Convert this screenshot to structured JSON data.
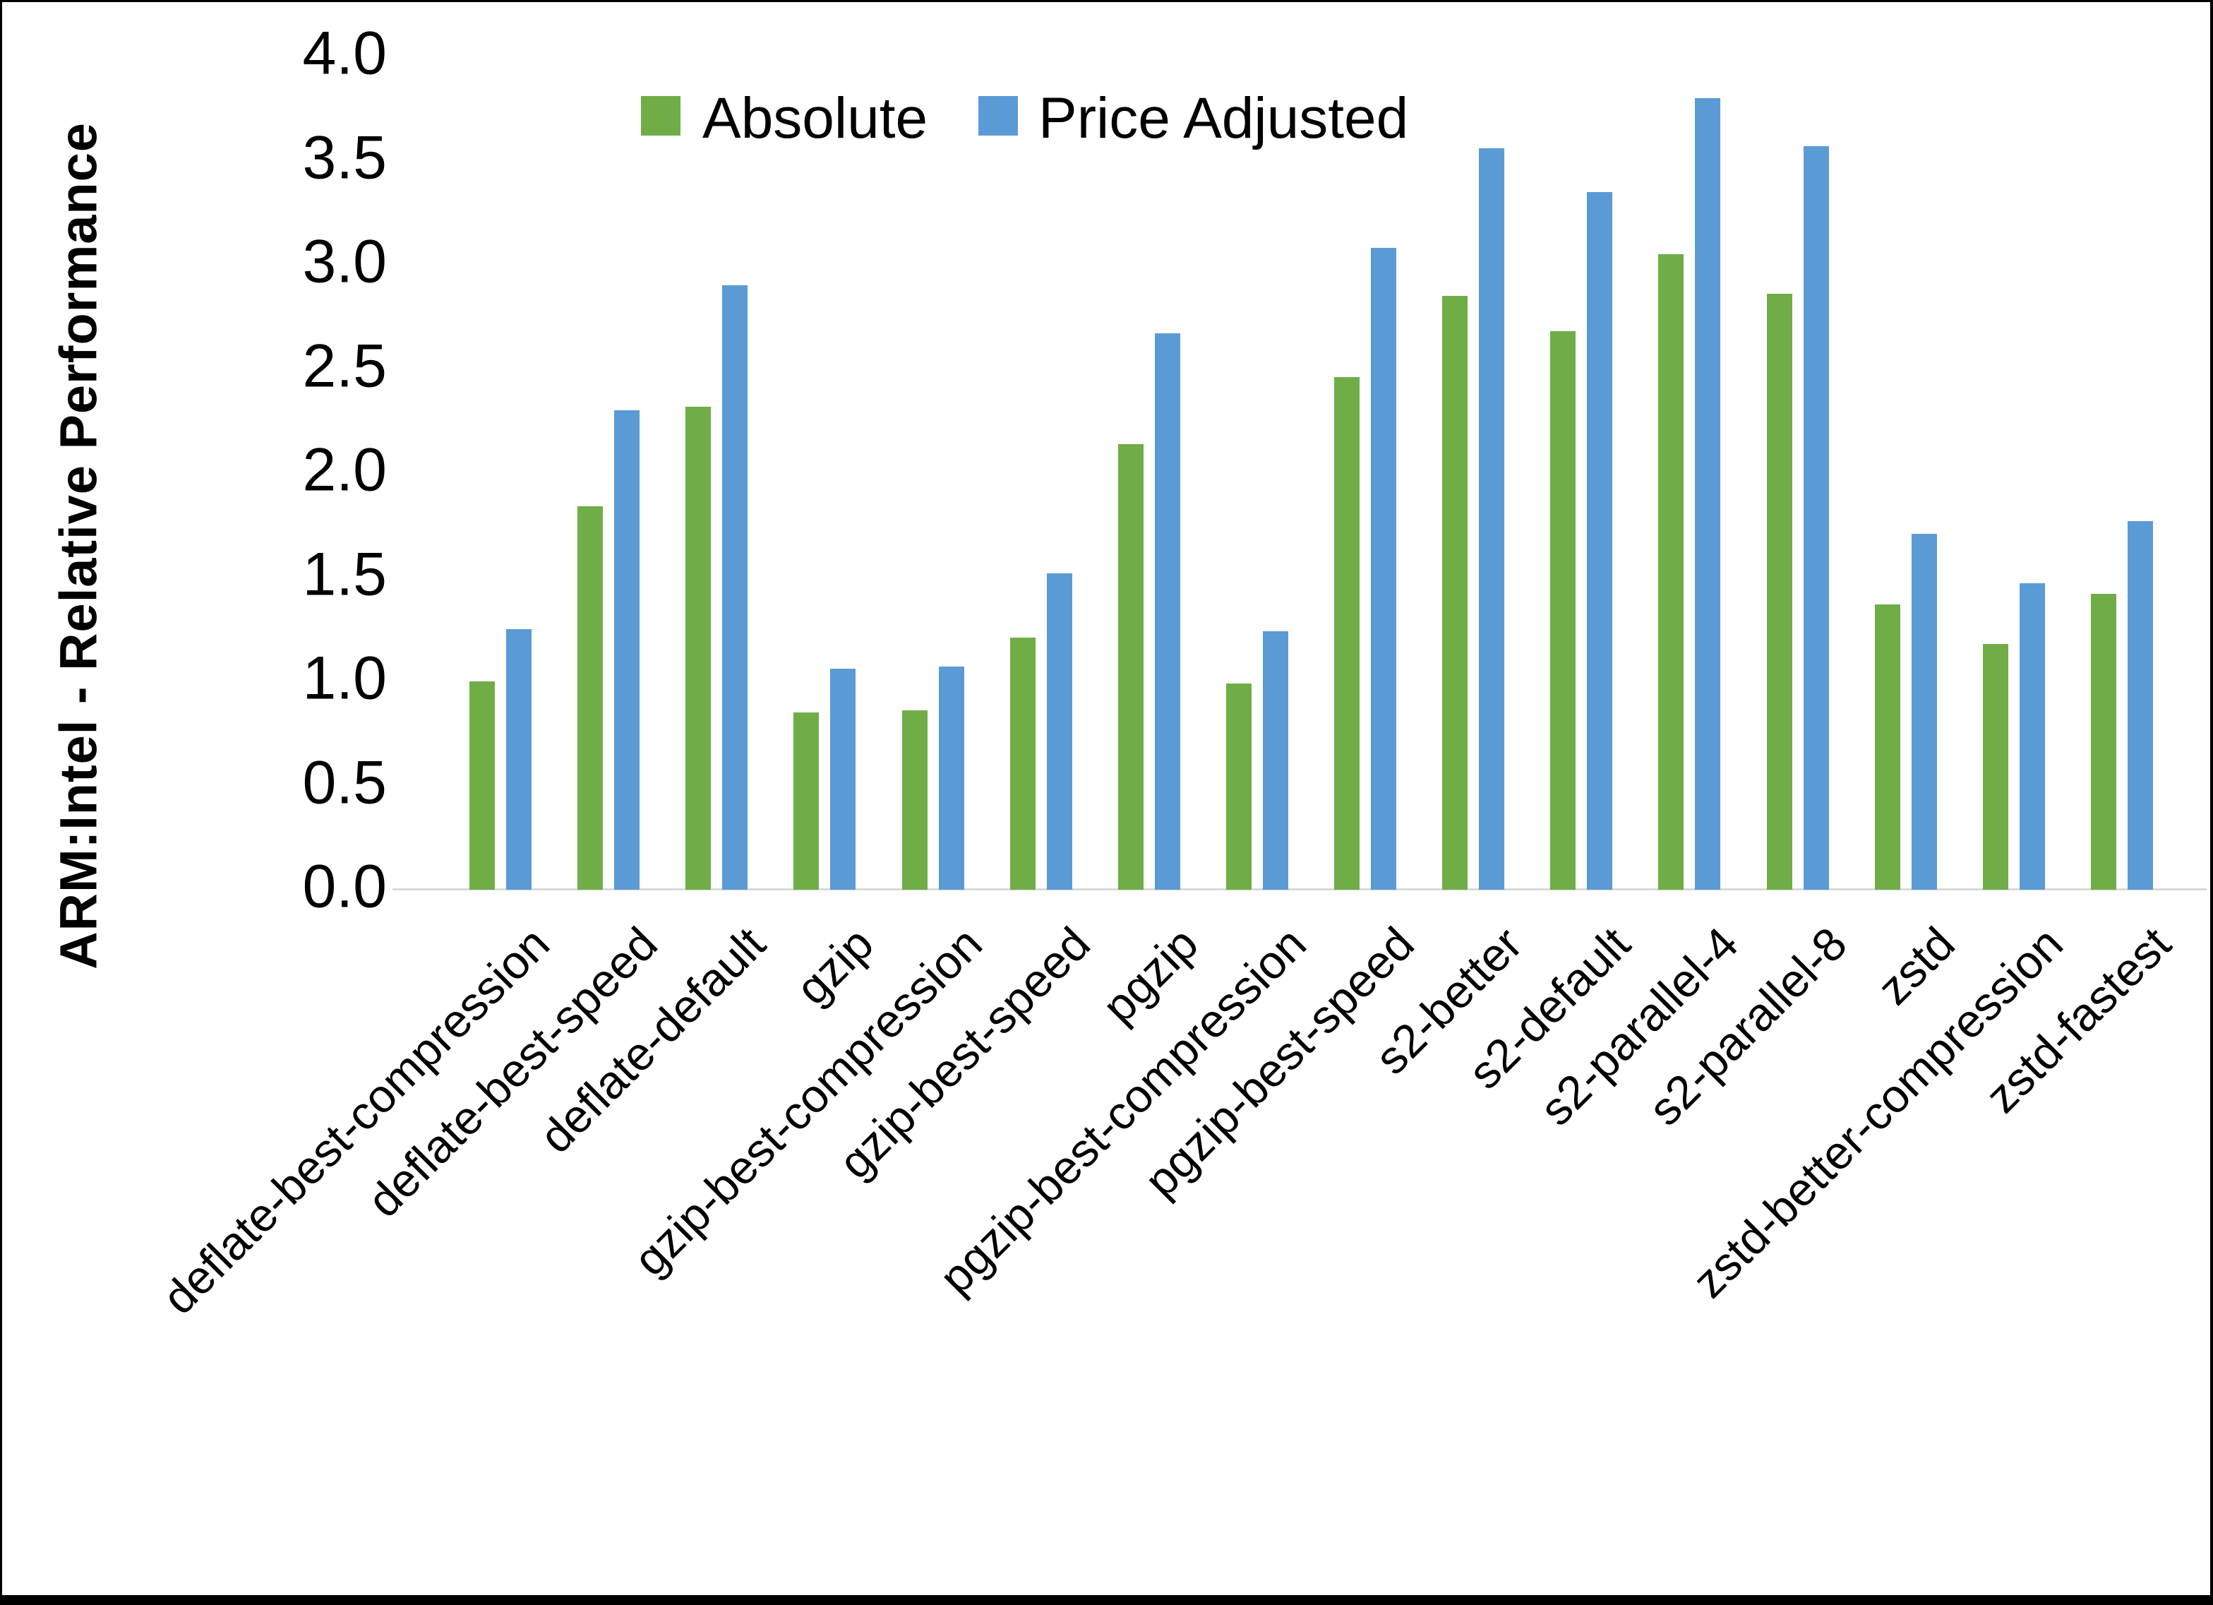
{
  "chart_data": {
    "type": "bar",
    "title": "",
    "xlabel": "",
    "ylabel": "ARM:Intel - Relative Performance",
    "ylim": [
      0.0,
      4.0
    ],
    "ytick_step": 0.5,
    "yticks": [
      "4.0",
      "3.5",
      "3.0",
      "2.5",
      "2.0",
      "1.5",
      "1.0",
      "0.5",
      "0.0"
    ],
    "grid": false,
    "legend_position": "top-center",
    "categories": [
      "deflate-best-compression",
      "deflate-best-speed",
      "deflate-default",
      "gzip",
      "gzip-best-compression",
      "gzip-best-speed",
      "pgzip",
      "pgzip-best-compression",
      "pgzip-best-speed",
      "s2-better",
      "s2-default",
      "s2-parallel-4",
      "s2-parallel-8",
      "zstd",
      "zstd-better-compression",
      "zstd-fastest"
    ],
    "series": [
      {
        "name": "Absolute",
        "color": "#70AD47",
        "values": [
          1.0,
          1.84,
          2.32,
          0.85,
          0.86,
          1.21,
          2.14,
          0.99,
          2.46,
          2.85,
          2.68,
          3.05,
          2.86,
          1.37,
          1.18,
          1.42
        ]
      },
      {
        "name": "Price Adjusted",
        "color": "#5B9BD5",
        "values": [
          1.25,
          2.3,
          2.9,
          1.06,
          1.07,
          1.52,
          2.67,
          1.24,
          3.08,
          3.56,
          3.35,
          3.8,
          3.57,
          1.71,
          1.47,
          1.77
        ]
      }
    ]
  },
  "legend": [
    {
      "label": "Absolute",
      "color": "#70AD47"
    },
    {
      "label": "Price Adjusted",
      "color": "#5B9BD5"
    }
  ],
  "axis_colors": {
    "baseline": "#d9d9d9",
    "text": "#000000"
  }
}
